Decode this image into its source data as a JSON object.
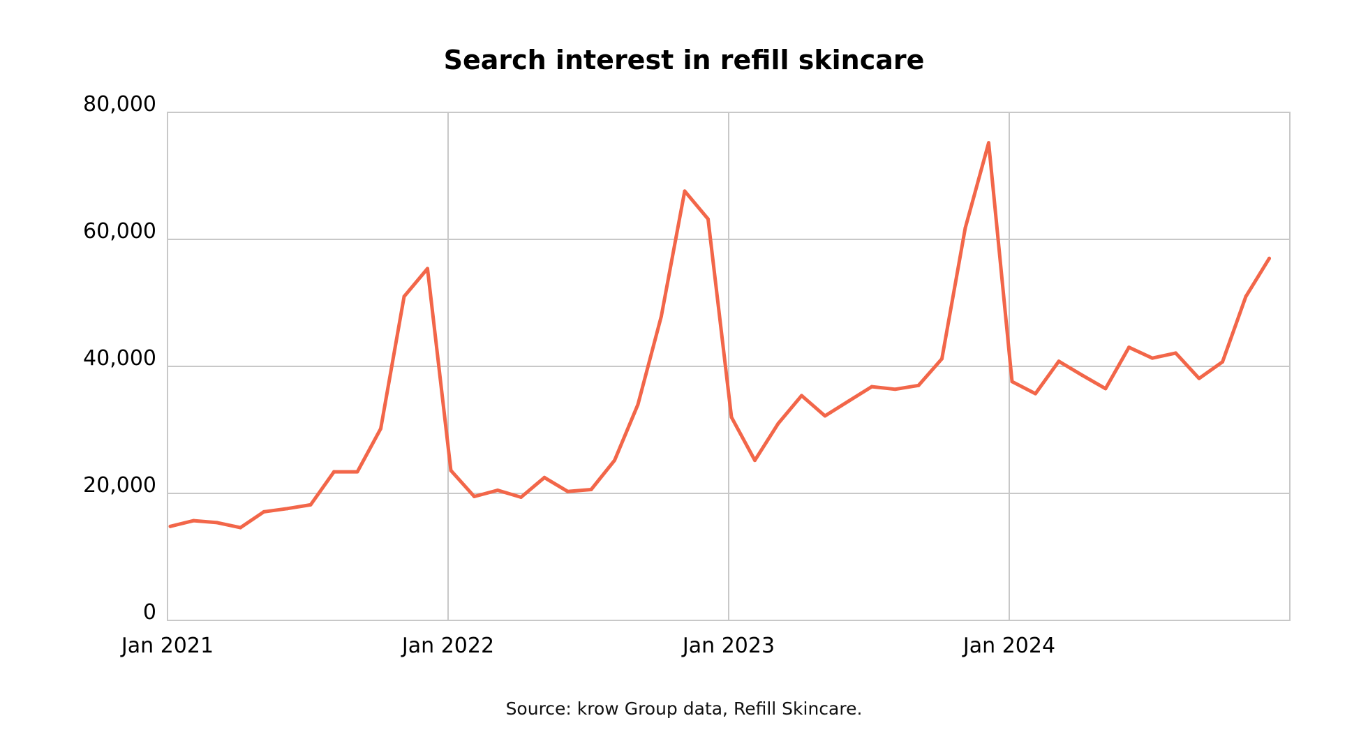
{
  "chart_data": {
    "type": "line",
    "title": "Search interest in refill skincare",
    "source": "Source: krow Group data, Refill Skincare.",
    "xlabel": "",
    "ylabel": "",
    "ylim": [
      0,
      80000
    ],
    "yticks": [
      0,
      20000,
      40000,
      60000,
      80000
    ],
    "ytick_labels": [
      "0",
      "20,000",
      "40,000",
      "60,000",
      "80,000"
    ],
    "xlim": [
      "2021-01",
      "2025-01"
    ],
    "xticks": [
      "2021-01",
      "2022-01",
      "2023-01",
      "2024-01"
    ],
    "xtick_labels": [
      "Jan 2021",
      "Jan 2022",
      "Jan 2023",
      "Jan 2024"
    ],
    "grid": true,
    "legend": "none",
    "series_color": "#f26649",
    "x": [
      "2021-01",
      "2021-02",
      "2021-03",
      "2021-04",
      "2021-05",
      "2021-06",
      "2021-07",
      "2021-08",
      "2021-09",
      "2021-10",
      "2021-11",
      "2021-12",
      "2022-01",
      "2022-02",
      "2022-03",
      "2022-04",
      "2022-05",
      "2022-06",
      "2022-07",
      "2022-08",
      "2022-09",
      "2022-10",
      "2022-11",
      "2022-12",
      "2023-01",
      "2023-02",
      "2023-03",
      "2023-04",
      "2023-05",
      "2023-06",
      "2023-07",
      "2023-08",
      "2023-09",
      "2023-10",
      "2023-11",
      "2023-12",
      "2024-01",
      "2024-02",
      "2024-03",
      "2024-04",
      "2024-05",
      "2024-06",
      "2024-07",
      "2024-08",
      "2024-09",
      "2024-10",
      "2024-11",
      "2024-12"
    ],
    "series": [
      {
        "values": [
          14800,
          15700,
          15400,
          14600,
          17100,
          17600,
          18200,
          23400,
          23400,
          30200,
          51000,
          55400,
          23600,
          19500,
          20500,
          19400,
          22500,
          20300,
          20600,
          25200,
          34000,
          47900,
          67600,
          63200,
          32000,
          25200,
          31000,
          35400,
          32200,
          34500,
          36800,
          36400,
          37000,
          41200,
          61800,
          75200,
          37600,
          35700,
          40800,
          38600,
          36500,
          43000,
          41300,
          42100,
          38100,
          40700,
          51000,
          57000
        ]
      }
    ]
  }
}
